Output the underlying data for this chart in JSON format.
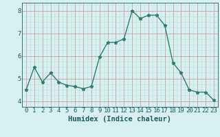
{
  "x": [
    0,
    1,
    2,
    3,
    4,
    5,
    6,
    7,
    8,
    9,
    10,
    11,
    12,
    13,
    14,
    15,
    16,
    17,
    18,
    19,
    20,
    21,
    22,
    23
  ],
  "y": [
    4.5,
    5.5,
    4.85,
    5.25,
    4.85,
    4.7,
    4.65,
    4.55,
    4.65,
    5.95,
    6.6,
    6.6,
    6.75,
    8.0,
    7.65,
    7.8,
    7.8,
    7.35,
    5.7,
    5.25,
    4.5,
    4.4,
    4.4,
    4.05
  ],
  "line_color": "#2e7d6e",
  "marker": "*",
  "marker_size": 3.5,
  "bg_color": "#d9f0f0",
  "grid_color_major": "#c8a0a0",
  "grid_color_minor": "#b8dede",
  "xlabel": "Humidex (Indice chaleur)",
  "ylim": [
    3.75,
    8.35
  ],
  "xlim": [
    -0.5,
    23.5
  ],
  "yticks": [
    4,
    5,
    6,
    7,
    8
  ],
  "xticks": [
    0,
    1,
    2,
    3,
    4,
    5,
    6,
    7,
    8,
    9,
    10,
    11,
    12,
    13,
    14,
    15,
    16,
    17,
    18,
    19,
    20,
    21,
    22,
    23
  ],
  "font_color": "#1a5f5f",
  "xlabel_fontsize": 7.5,
  "tick_fontsize": 6.5,
  "linewidth": 1.0
}
